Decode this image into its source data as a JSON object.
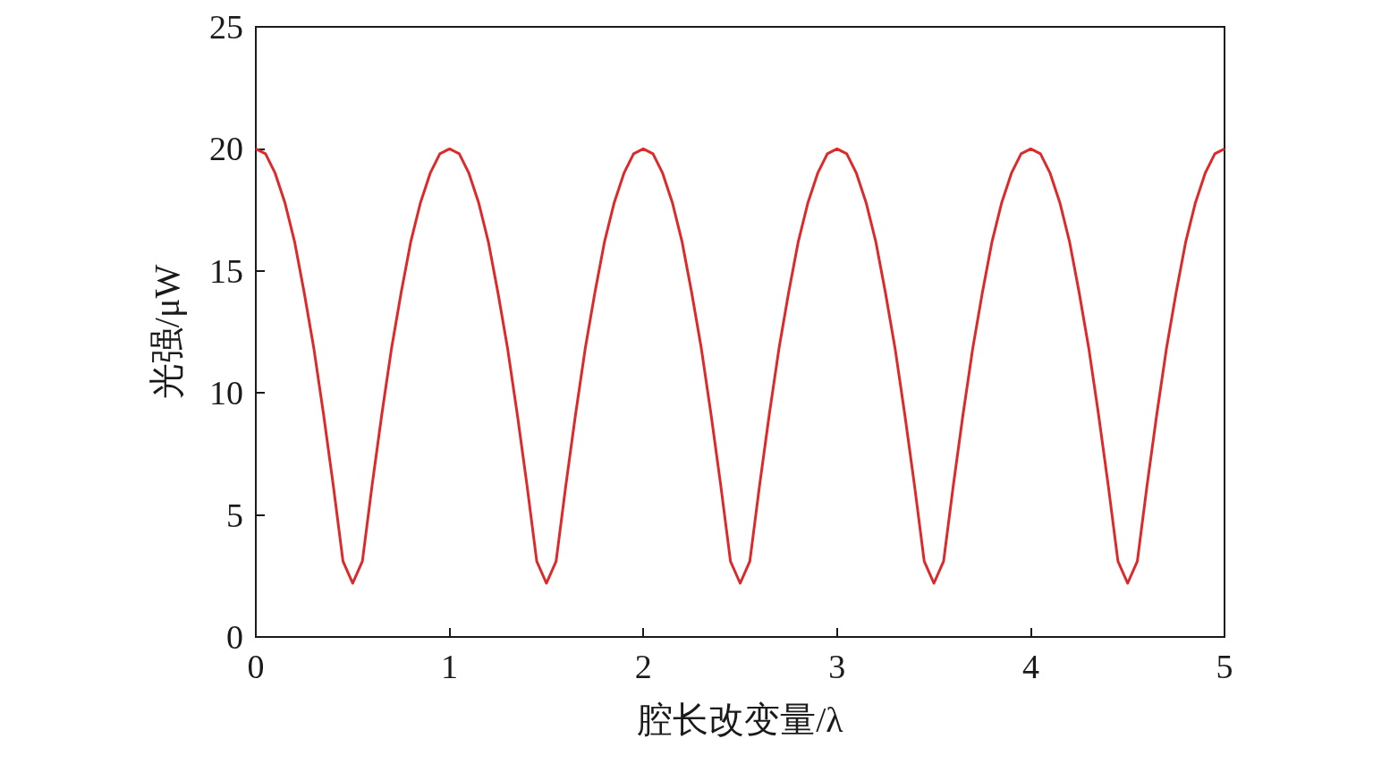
{
  "chart_data": {
    "type": "line",
    "xlabel": "腔长改变量/λ",
    "ylabel": "光强/μW",
    "x": [
      0,
      0.05,
      0.1,
      0.15,
      0.2,
      0.25,
      0.3,
      0.35,
      0.4,
      0.45,
      0.5,
      0.55,
      0.6,
      0.65,
      0.7,
      0.75,
      0.8,
      0.85,
      0.9,
      0.95,
      1,
      1.05,
      1.1,
      1.15,
      1.2,
      1.25,
      1.3,
      1.35,
      1.4,
      1.45,
      1.5,
      1.55,
      1.6,
      1.65,
      1.7,
      1.75,
      1.8,
      1.85,
      1.9,
      1.95,
      2,
      2.05,
      2.1,
      2.15,
      2.2,
      2.25,
      2.3,
      2.35,
      2.4,
      2.45,
      2.5,
      2.55,
      2.6,
      2.65,
      2.7,
      2.75,
      2.8,
      2.85,
      2.9,
      2.95,
      3,
      3.05,
      3.1,
      3.15,
      3.2,
      3.25,
      3.3,
      3.35,
      3.4,
      3.45,
      3.5,
      3.55,
      3.6,
      3.65,
      3.7,
      3.75,
      3.8,
      3.85,
      3.9,
      3.95,
      4,
      4.05,
      4.1,
      4.15,
      4.2,
      4.25,
      4.3,
      4.35,
      4.4,
      4.45,
      4.5,
      4.55,
      4.6,
      4.65,
      4.7,
      4.75,
      4.8,
      4.85,
      4.9,
      4.95,
      5
    ],
    "series": [
      {
        "color": "#dc2a2a",
        "values": [
          20,
          19.8,
          19.0,
          17.8,
          16.2,
          14.1,
          11.8,
          9.1,
          6.2,
          3.1,
          2.2,
          3.1,
          6.2,
          9.1,
          11.8,
          14.1,
          16.2,
          17.8,
          19.0,
          19.8,
          20,
          19.8,
          19.0,
          17.8,
          16.2,
          14.1,
          11.8,
          9.1,
          6.2,
          3.1,
          2.2,
          3.1,
          6.2,
          9.1,
          11.8,
          14.1,
          16.2,
          17.8,
          19.0,
          19.8,
          20,
          19.8,
          19.0,
          17.8,
          16.2,
          14.1,
          11.8,
          9.1,
          6.2,
          3.1,
          2.2,
          3.1,
          6.2,
          9.1,
          11.8,
          14.1,
          16.2,
          17.8,
          19.0,
          19.8,
          20,
          19.8,
          19.0,
          17.8,
          16.2,
          14.1,
          11.8,
          9.1,
          6.2,
          3.1,
          2.2,
          3.1,
          6.2,
          9.1,
          11.8,
          14.1,
          16.2,
          17.8,
          19.0,
          19.8,
          20,
          19.8,
          19.0,
          17.8,
          16.2,
          14.1,
          11.8,
          9.1,
          6.2,
          3.1,
          2.2,
          3.1,
          6.2,
          9.1,
          11.8,
          14.1,
          16.2,
          17.8,
          19.0,
          19.8,
          20
        ]
      }
    ],
    "xlim": [
      0,
      5
    ],
    "xticks": [
      0,
      1,
      2,
      3,
      4,
      5
    ],
    "ylim": [
      0,
      25
    ],
    "yticks": [
      0,
      5,
      10,
      15,
      20,
      25
    ],
    "grid": false,
    "marker": "none",
    "line_style": "solid"
  }
}
